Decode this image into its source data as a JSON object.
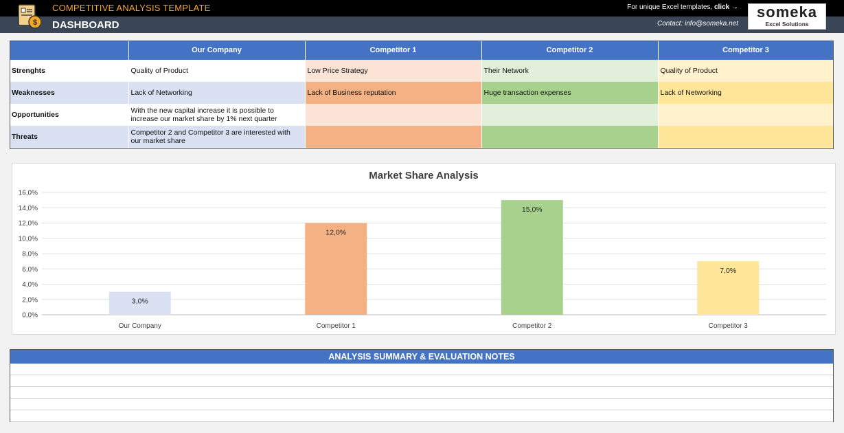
{
  "header": {
    "template_title": "COMPETITIVE ANALYSIS TEMPLATE",
    "page_title": "DASHBOARD",
    "promo_text": "For unique Excel templates, ",
    "promo_link": "click →",
    "contact": "Contact: info@someka.net",
    "brand_name": "someka",
    "brand_tagline": "Excel Solutions",
    "logo_icon": "document-coin-icon"
  },
  "swot": {
    "columns": [
      "Our Company",
      "Competitor 1",
      "Competitor 2",
      "Competitor 3"
    ],
    "rows": [
      {
        "label": "Strenghts",
        "cells": [
          "Quality of Product",
          "Low Price Strategy",
          "Their Network",
          "Quality of Product"
        ]
      },
      {
        "label": "Weaknesses",
        "cells": [
          "Lack of Networking",
          "Lack of  Business reputation",
          "Huge transaction expenses",
          "Lack of Networking"
        ]
      },
      {
        "label": "Opportunities",
        "cells": [
          "With the new capital increase it is possible to increase our market share by 1% next quarter",
          "",
          "",
          ""
        ]
      },
      {
        "label": "Threats",
        "cells": [
          "Competitor 2 and Competitor 3 are interested with our market share",
          "",
          "",
          ""
        ]
      }
    ]
  },
  "colors": {
    "header_blue": "#4472c4",
    "our_company": "#d9e1f2",
    "competitor_1": "#f4b183",
    "competitor_2": "#a9d18e",
    "competitor_3": "#ffe699"
  },
  "chart_data": {
    "type": "bar",
    "title": "Market Share Analysis",
    "categories": [
      "Our Company",
      "Competitor 1",
      "Competitor 2",
      "Competitor 3"
    ],
    "values": [
      3.0,
      12.0,
      15.0,
      7.0
    ],
    "value_labels": [
      "3,0%",
      "12,0%",
      "15,0%",
      "7,0%"
    ],
    "bar_colors": [
      "#d9e1f2",
      "#f4b183",
      "#a9d18e",
      "#ffe699"
    ],
    "ylim": [
      0,
      16
    ],
    "y_ticks": [
      "0,0%",
      "2,0%",
      "4,0%",
      "6,0%",
      "8,0%",
      "10,0%",
      "12,0%",
      "14,0%",
      "16,0%"
    ],
    "grid": true,
    "xlabel": "",
    "ylabel": ""
  },
  "notes": {
    "title": "ANALYSIS SUMMARY & EVALUATION NOTES",
    "lines": [
      "",
      "",
      "",
      "",
      ""
    ]
  }
}
